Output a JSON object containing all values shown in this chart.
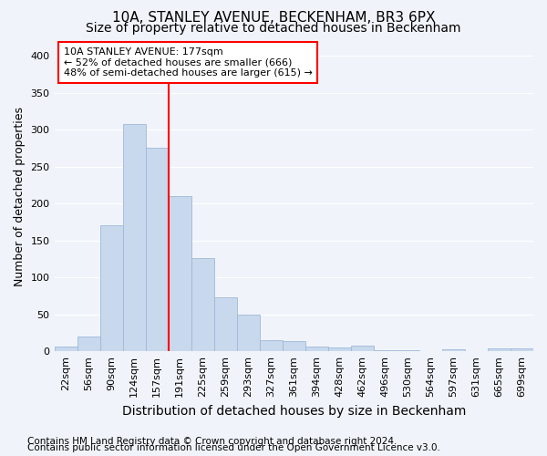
{
  "title1": "10A, STANLEY AVENUE, BECKENHAM, BR3 6PX",
  "title2": "Size of property relative to detached houses in Beckenham",
  "xlabel": "Distribution of detached houses by size in Beckenham",
  "ylabel": "Number of detached properties",
  "categories": [
    "22sqm",
    "56sqm",
    "90sqm",
    "124sqm",
    "157sqm",
    "191sqm",
    "225sqm",
    "259sqm",
    "293sqm",
    "327sqm",
    "361sqm",
    "394sqm",
    "428sqm",
    "462sqm",
    "496sqm",
    "530sqm",
    "564sqm",
    "597sqm",
    "631sqm",
    "665sqm",
    "699sqm"
  ],
  "values": [
    7,
    20,
    170,
    308,
    275,
    210,
    126,
    73,
    49,
    15,
    14,
    7,
    5,
    8,
    2,
    1,
    0,
    3,
    0,
    4,
    4
  ],
  "bar_color": "#c8d8ed",
  "bar_edge_color": "#a0b8d8",
  "annotation_text": "10A STANLEY AVENUE: 177sqm\n← 52% of detached houses are smaller (666)\n48% of semi-detached houses are larger (615) →",
  "annotation_box_color": "white",
  "annotation_box_edgecolor": "red",
  "vline_color": "red",
  "vline_pos": 4.588,
  "ylim": [
    0,
    420
  ],
  "yticks": [
    0,
    50,
    100,
    150,
    200,
    250,
    300,
    350,
    400
  ],
  "footnote1": "Contains HM Land Registry data © Crown copyright and database right 2024.",
  "footnote2": "Contains public sector information licensed under the Open Government Licence v3.0.",
  "bg_color": "#f0f4fa",
  "plot_bg_color": "#f0f4fa",
  "grid_color": "white",
  "title_fontsize": 11,
  "subtitle_fontsize": 10,
  "axis_label_fontsize": 9,
  "tick_fontsize": 8,
  "annot_fontsize": 8,
  "footnote_fontsize": 7.5
}
